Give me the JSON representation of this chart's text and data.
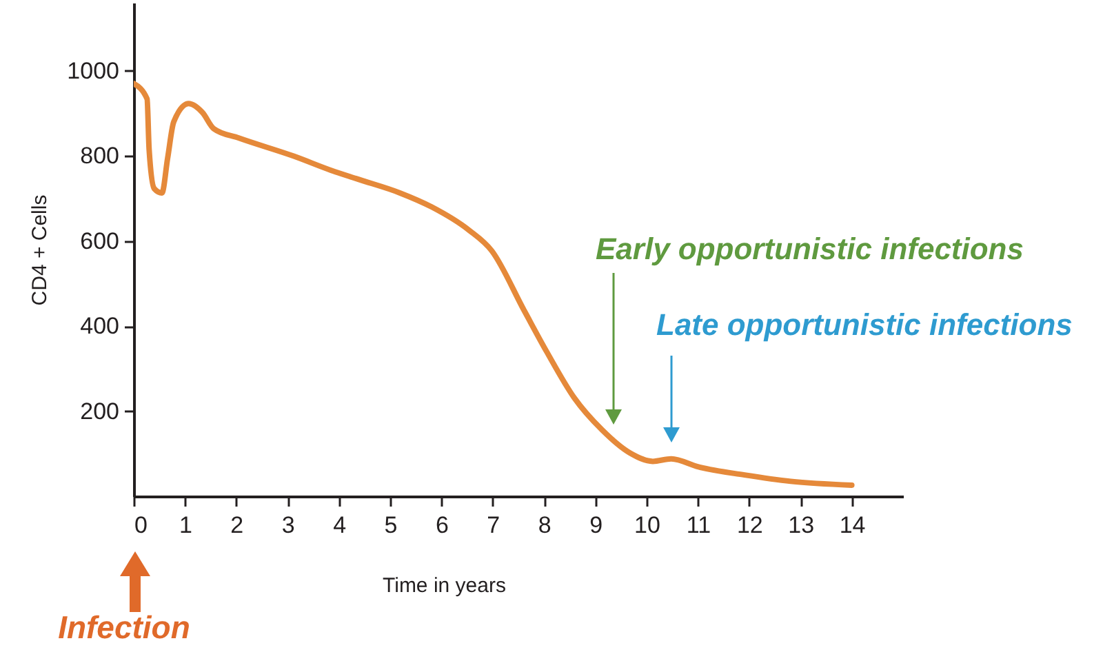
{
  "chart_data": {
    "type": "line",
    "xlabel": "Time in years",
    "ylabel": "CD4 + Cells",
    "x": [
      0,
      0.26,
      0.3,
      0.4,
      0.55,
      0.66,
      0.78,
      1.07,
      1.34,
      1.56,
      2.05,
      3.13,
      3.85,
      4.38,
      5.19,
      5.81,
      6.53,
      6.98,
      7.61,
      8.05,
      8.59,
      9.13,
      9.67,
      10.12,
      10.48,
      11.01,
      11.91,
      12.81,
      14
    ],
    "series": [
      {
        "color": "#e5893a",
        "values": [
          970,
          934,
          815,
          723,
          713,
          794,
          880,
          923,
          902,
          864,
          842,
          799,
          766,
          745,
          713,
          680,
          626,
          577,
          437,
          340,
          231,
          156,
          102,
          82,
          88,
          69,
          50,
          35,
          26
        ]
      }
    ],
    "xlim": [
      0,
      15
    ],
    "ylim": [
      0,
      1160
    ],
    "xticks": [
      0,
      1,
      2,
      3,
      4,
      5,
      6,
      7,
      8,
      9,
      10,
      11,
      12,
      13,
      14
    ],
    "yticks": [
      200,
      400,
      600,
      800,
      1000
    ],
    "grid": false,
    "marker": "none",
    "line_style": "solid",
    "annotations": [
      "Early opportunistic infections",
      "Late opportunistic infections",
      "Infection"
    ]
  }
}
